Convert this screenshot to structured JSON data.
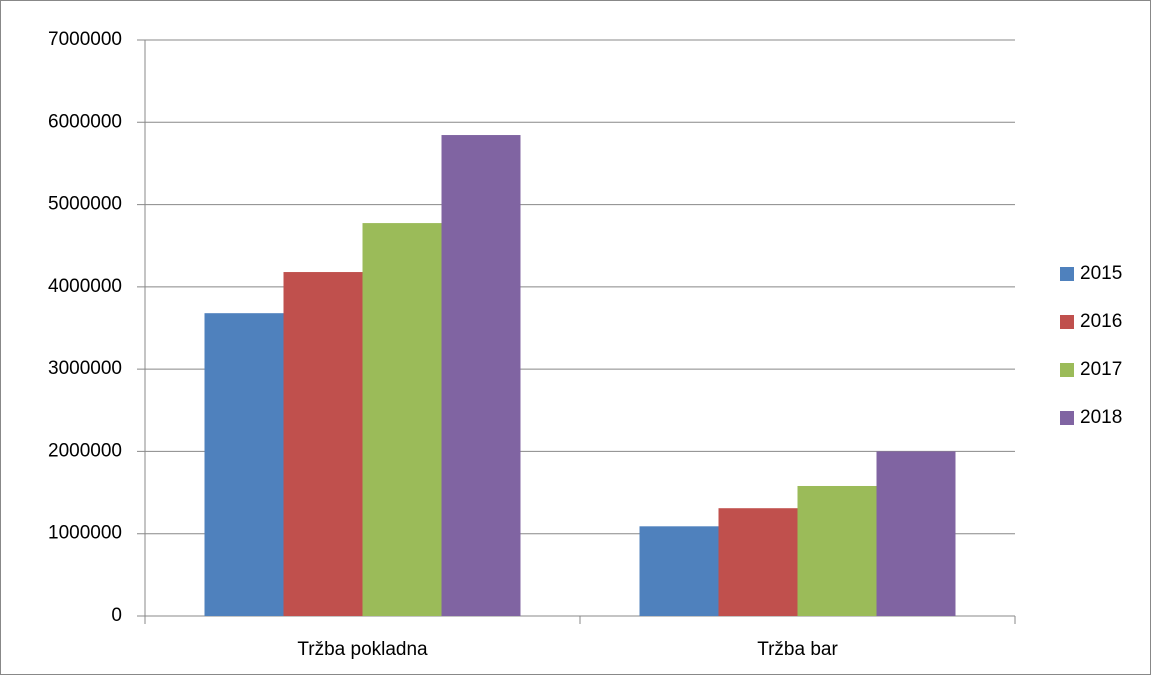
{
  "chart_data": {
    "type": "bar",
    "categories": [
      "Tržba pokladna",
      "Tržba bar"
    ],
    "series": [
      {
        "name": "2015",
        "color": "#4f81bd",
        "values": [
          3680000,
          1090000
        ]
      },
      {
        "name": "2016",
        "color": "#c0504d",
        "values": [
          4180000,
          1310000
        ]
      },
      {
        "name": "2017",
        "color": "#9bbb59",
        "values": [
          4775000,
          1580000
        ]
      },
      {
        "name": "2018",
        "color": "#8064a2",
        "values": [
          5845000,
          2000000
        ]
      }
    ],
    "ylim": [
      0,
      7000000
    ],
    "yticks": [
      0,
      1000000,
      2000000,
      3000000,
      4000000,
      5000000,
      6000000,
      7000000
    ],
    "grid": true,
    "legend": "right"
  }
}
